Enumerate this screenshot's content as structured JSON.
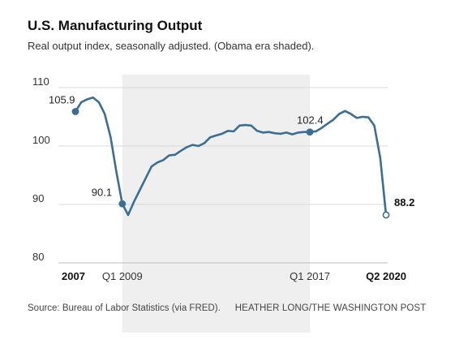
{
  "chart_data": {
    "type": "line",
    "title": "U.S. Manufacturing Output",
    "subtitle": "Real output index, seasonally adjusted. (Obama era shaded).",
    "ylim": [
      80,
      110
    ],
    "yticks": [
      "110",
      "100",
      "90",
      "80"
    ],
    "xticks": [
      {
        "label": "2007",
        "x": 2007.0,
        "bold": true
      },
      {
        "label": "Q1 2009",
        "x": 2009.0,
        "bold": false
      },
      {
        "label": "Q1 2017",
        "x": 2017.0,
        "bold": false
      },
      {
        "label": "Q2 2020",
        "x": 2020.25,
        "bold": true
      }
    ],
    "xlim": [
      2007.0,
      2020.25
    ],
    "shaded_region": {
      "label": "Obama era",
      "x_start": 2009.0,
      "x_end": 2017.0
    },
    "series": [
      {
        "color": "#3a6e95",
        "x": [
          2007.0,
          2007.25,
          2007.5,
          2007.75,
          2008.0,
          2008.25,
          2008.5,
          2008.75,
          2009.0,
          2009.25,
          2009.5,
          2009.75,
          2010.0,
          2010.25,
          2010.5,
          2010.75,
          2011.0,
          2011.25,
          2011.5,
          2011.75,
          2012.0,
          2012.25,
          2012.5,
          2012.75,
          2013.0,
          2013.25,
          2013.5,
          2013.75,
          2014.0,
          2014.25,
          2014.5,
          2014.75,
          2015.0,
          2015.25,
          2015.5,
          2015.75,
          2016.0,
          2016.25,
          2016.5,
          2016.75,
          2017.0,
          2017.25,
          2017.5,
          2017.75,
          2018.0,
          2018.25,
          2018.5,
          2018.75,
          2019.0,
          2019.25,
          2019.5,
          2019.75,
          2020.0,
          2020.25
        ],
        "values": [
          105.9,
          107.5,
          108.0,
          108.3,
          107.5,
          105.5,
          101.5,
          95.5,
          90.1,
          88.2,
          90.5,
          92.5,
          94.5,
          96.5,
          97.2,
          97.6,
          98.4,
          98.5,
          99.2,
          99.8,
          100.2,
          100.0,
          100.5,
          101.5,
          101.8,
          102.1,
          102.6,
          102.5,
          103.5,
          103.6,
          103.5,
          102.6,
          102.3,
          102.4,
          102.2,
          102.1,
          102.3,
          102.0,
          102.3,
          102.4,
          102.4,
          102.5,
          103.1,
          103.8,
          104.5,
          105.5,
          106.0,
          105.5,
          104.8,
          105.0,
          104.9,
          103.5,
          98.0,
          88.2
        ]
      }
    ],
    "annotations": [
      {
        "label": "105.9",
        "x": 2007.0,
        "y": 105.9,
        "bold": false,
        "filled": true
      },
      {
        "label": "90.1",
        "x": 2009.0,
        "y": 90.1,
        "bold": false,
        "filled": true
      },
      {
        "label": "102.4",
        "x": 2017.0,
        "y": 102.4,
        "bold": false,
        "filled": true
      },
      {
        "label": "88.2",
        "x": 2020.25,
        "y": 88.2,
        "bold": true,
        "filled": false
      }
    ]
  },
  "footer": {
    "source": "Source: Bureau of Labor Statistics (via FRED).",
    "credit": "HEATHER LONG/THE WASHINGTON POST"
  },
  "colors": {
    "line": "#3a6e95",
    "shade": "#efefef",
    "grid": "#d9d9d9"
  }
}
